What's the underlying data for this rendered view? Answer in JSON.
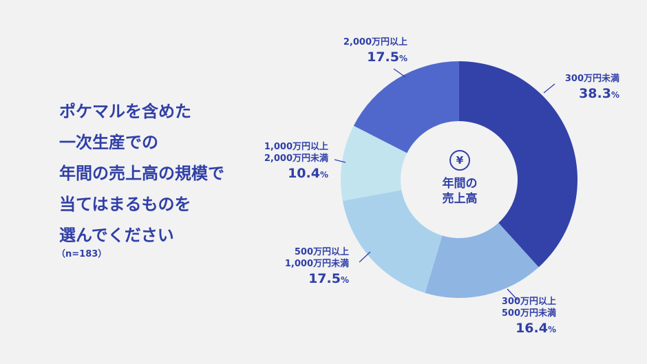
{
  "question": {
    "lines": [
      "ポケマルを含めた",
      "一次生産での",
      "年間の売上高の規模で",
      "当てはまるものを",
      "選んでください"
    ],
    "sample": "（n=183）"
  },
  "center": {
    "icon": "yen-icon",
    "title_lines": [
      "年間の",
      "売上高"
    ]
  },
  "colors": {
    "text": "#2f3fa6"
  },
  "chart_data": {
    "type": "pie",
    "donut": true,
    "categories": [
      [
        "300万円未満"
      ],
      [
        "300万円以上",
        "500万円未満"
      ],
      [
        "500万円以上",
        "1,000万円未満"
      ],
      [
        "1,000万円以上",
        "2,000万円未満"
      ],
      [
        "2,000万円以上"
      ]
    ],
    "values": [
      38.3,
      16.4,
      17.5,
      10.4,
      17.5
    ],
    "value_labels": [
      "38.3",
      "16.4",
      "17.5",
      "10.4",
      "17.5"
    ],
    "unit": "%",
    "colors": [
      "#3342a8",
      "#8fb5e3",
      "#a9d1ec",
      "#c2e4ef",
      "#5068cb"
    ]
  }
}
